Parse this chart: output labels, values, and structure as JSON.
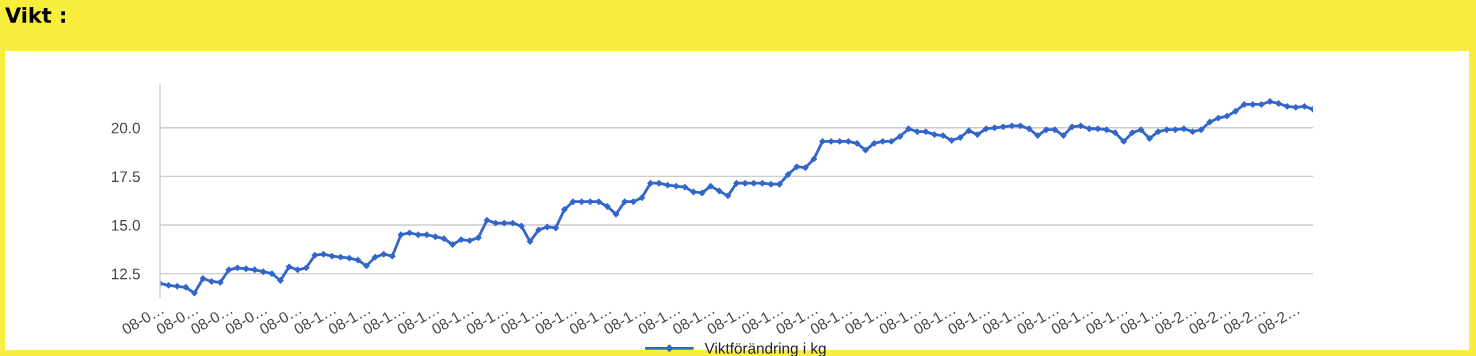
{
  "chart_data": {
    "type": "line",
    "title": "Vikt :",
    "categories": [
      "08-0…",
      null,
      null,
      null,
      "08-0…",
      null,
      null,
      null,
      "08-0…",
      null,
      null,
      null,
      "08-0…",
      null,
      null,
      null,
      "08-0…",
      null,
      null,
      null,
      "08-1…",
      null,
      null,
      null,
      "08-1…",
      null,
      null,
      null,
      "08-1…",
      null,
      null,
      null,
      "08-1…",
      null,
      null,
      null,
      "08-1…",
      null,
      null,
      null,
      "08-1…",
      null,
      null,
      null,
      "08-1…",
      null,
      null,
      null,
      "08-1…",
      null,
      null,
      null,
      "08-1…",
      null,
      null,
      null,
      "08-1…",
      null,
      null,
      null,
      "08-1…",
      null,
      null,
      null,
      "08-1…",
      null,
      null,
      null,
      "08-1…",
      null,
      null,
      null,
      "08-1…",
      null,
      null,
      null,
      "08-1…",
      null,
      null,
      null,
      "08-1…",
      null,
      null,
      null,
      "08-1…",
      null,
      null,
      null,
      "08-1…",
      null,
      null,
      null,
      "08-1…",
      null,
      null,
      null,
      "08-1…",
      null,
      null,
      null,
      "08-1…",
      null,
      null,
      null,
      "08-1…",
      null,
      null,
      null,
      "08-1…",
      null,
      null,
      null,
      "08-1…",
      null,
      null,
      null,
      "08-1…",
      null,
      null,
      null,
      "08-2…",
      null,
      null,
      null,
      "08-2…",
      null,
      null,
      null,
      "08-2…",
      null,
      null,
      null,
      "08-2…",
      null,
      null
    ],
    "series": [
      {
        "name": "Viktförändring i kg",
        "color": "#3366cc",
        "values": [
          12.0,
          11.9,
          11.85,
          11.8,
          11.5,
          12.25,
          12.1,
          12.05,
          12.7,
          12.8,
          12.75,
          12.7,
          12.6,
          12.5,
          12.15,
          12.85,
          12.7,
          12.8,
          13.45,
          13.5,
          13.4,
          13.35,
          13.3,
          13.2,
          12.9,
          13.35,
          13.5,
          13.4,
          14.5,
          14.6,
          14.5,
          14.5,
          14.4,
          14.3,
          14.0,
          14.25,
          14.2,
          14.35,
          15.25,
          15.1,
          15.1,
          15.1,
          14.95,
          14.15,
          14.75,
          14.9,
          14.85,
          15.8,
          16.2,
          16.2,
          16.2,
          16.2,
          15.95,
          15.55,
          16.2,
          16.2,
          16.4,
          17.15,
          17.15,
          17.05,
          17.0,
          16.95,
          16.7,
          16.65,
          17.0,
          16.75,
          16.5,
          17.15,
          17.15,
          17.15,
          17.15,
          17.1,
          17.1,
          17.6,
          18.0,
          17.95,
          18.4,
          19.3,
          19.3,
          19.3,
          19.3,
          19.2,
          18.85,
          19.2,
          19.3,
          19.3,
          19.55,
          19.95,
          19.8,
          19.8,
          19.65,
          19.6,
          19.35,
          19.5,
          19.85,
          19.65,
          19.95,
          20.0,
          20.05,
          20.1,
          20.1,
          19.95,
          19.6,
          19.9,
          19.9,
          19.6,
          20.05,
          20.1,
          19.95,
          19.95,
          19.9,
          19.75,
          19.3,
          19.75,
          19.9,
          19.45,
          19.8,
          19.9,
          19.9,
          19.95,
          19.8,
          19.9,
          20.3,
          20.5,
          20.6,
          20.85,
          21.2,
          21.2,
          21.2,
          21.35,
          21.25,
          21.1,
          21.05,
          21.1,
          20.95
        ]
      }
    ],
    "ylim": [
      11.3,
      22.2
    ],
    "yticks": [
      {
        "value": 12.5,
        "label": "12.5"
      },
      {
        "value": 15,
        "label": "15.0"
      },
      {
        "value": 17.5,
        "label": "17.5"
      },
      {
        "value": 20,
        "label": "20.0"
      }
    ],
    "grid": "y",
    "legend": "bottom",
    "marker": "diamond",
    "line_style": "solid"
  }
}
